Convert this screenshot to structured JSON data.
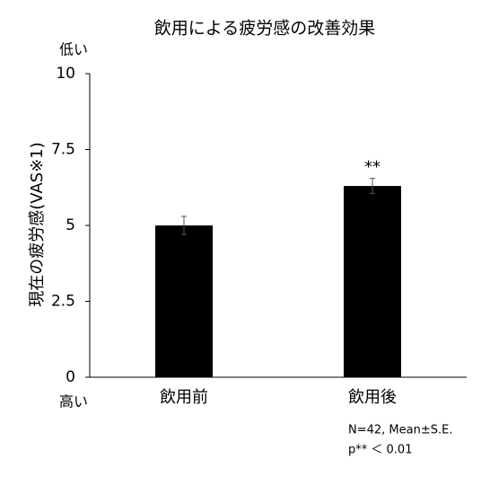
{
  "chart_data": {
    "type": "bar",
    "title": "飲用による疲労感の改善効果",
    "y_label": "現在の疲労感(VAS※1)",
    "categories": [
      "飲用前",
      "飲用後"
    ],
    "values": [
      5.0,
      6.3
    ],
    "errors": [
      0.3,
      0.25
    ],
    "color": "#000000",
    "ylim": [
      0,
      10
    ],
    "yticks": [
      0,
      2.5,
      5,
      7.5,
      10
    ],
    "grid": false,
    "annotations": {
      "top": "低い",
      "bottom": "高い",
      "significance": "**",
      "note": "N=42, Mean±S.E.",
      "p_note": "p** ＜ 0.01"
    }
  }
}
